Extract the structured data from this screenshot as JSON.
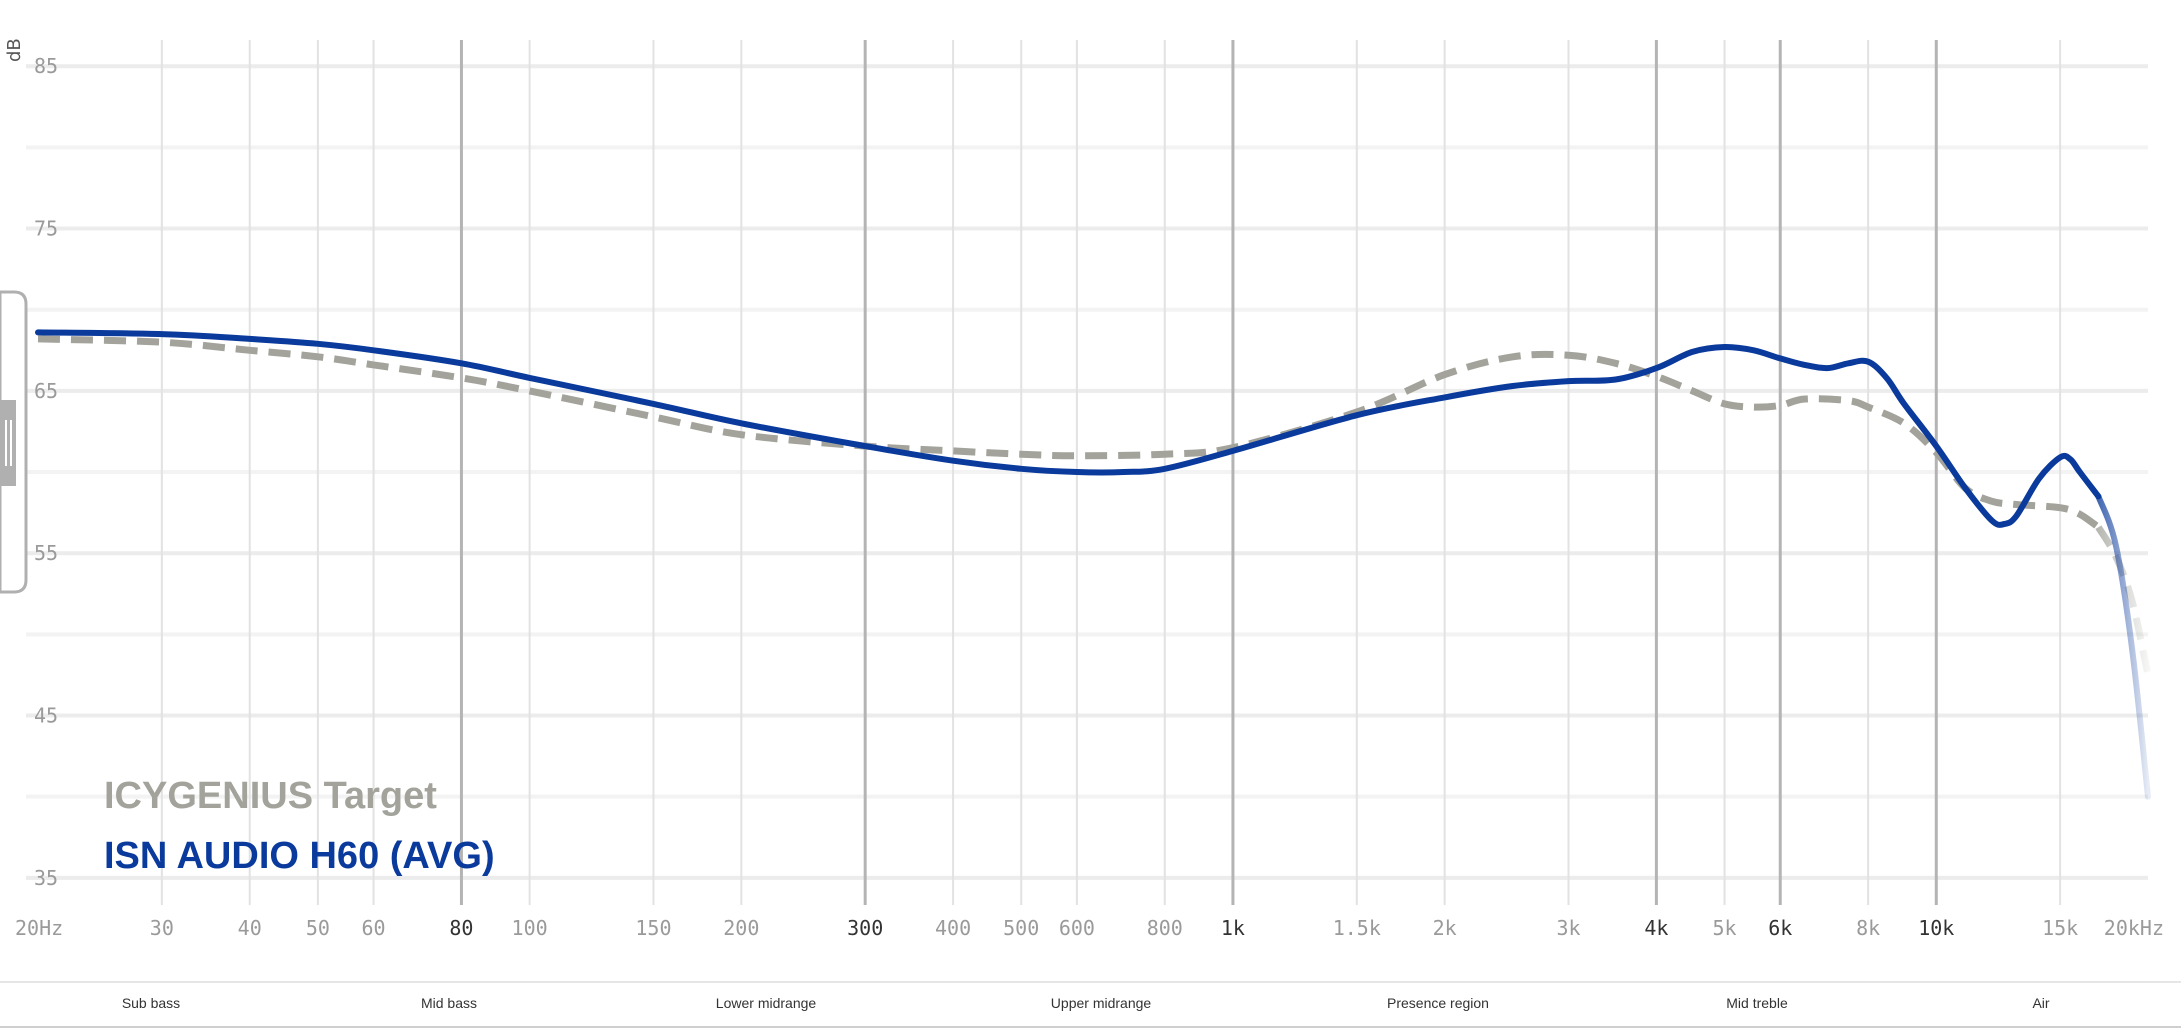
{
  "chart_data": {
    "type": "line",
    "x_scale": "log",
    "y_unit": "dB",
    "xlim": [
      20,
      20000
    ],
    "ylim": [
      30,
      86
    ],
    "y_ticks": [
      85,
      75,
      65,
      55,
      45,
      35
    ],
    "x_ticks": [
      {
        "value": 20,
        "label": "20Hz",
        "major": false
      },
      {
        "value": 30,
        "label": "30",
        "major": false
      },
      {
        "value": 40,
        "label": "40",
        "major": false
      },
      {
        "value": 50,
        "label": "50",
        "major": false
      },
      {
        "value": 60,
        "label": "60",
        "major": false
      },
      {
        "value": 80,
        "label": "80",
        "major": true
      },
      {
        "value": 100,
        "label": "100",
        "major": false
      },
      {
        "value": 150,
        "label": "150",
        "major": false
      },
      {
        "value": 200,
        "label": "200",
        "major": false
      },
      {
        "value": 300,
        "label": "300",
        "major": true
      },
      {
        "value": 400,
        "label": "400",
        "major": false
      },
      {
        "value": 500,
        "label": "500",
        "major": false
      },
      {
        "value": 600,
        "label": "600",
        "major": false
      },
      {
        "value": 800,
        "label": "800",
        "major": false
      },
      {
        "value": 1000,
        "label": "1k",
        "major": true
      },
      {
        "value": 1500,
        "label": "1.5k",
        "major": false
      },
      {
        "value": 2000,
        "label": "2k",
        "major": false
      },
      {
        "value": 3000,
        "label": "3k",
        "major": false
      },
      {
        "value": 4000,
        "label": "4k",
        "major": true
      },
      {
        "value": 5000,
        "label": "5k",
        "major": false
      },
      {
        "value": 6000,
        "label": "6k",
        "major": true
      },
      {
        "value": 8000,
        "label": "8k",
        "major": false
      },
      {
        "value": 10000,
        "label": "10k",
        "major": true
      },
      {
        "value": 15000,
        "label": "15k",
        "major": false
      },
      {
        "value": 20000,
        "label": "20kHz",
        "major": false
      }
    ],
    "series": [
      {
        "name": "ICYGENIUS Target",
        "color": "#a3a39c",
        "style": "dashed",
        "points": [
          [
            20,
            68.2
          ],
          [
            30,
            68.0
          ],
          [
            40,
            67.5
          ],
          [
            50,
            67.1
          ],
          [
            60,
            66.6
          ],
          [
            80,
            65.8
          ],
          [
            100,
            65.0
          ],
          [
            150,
            63.4
          ],
          [
            200,
            62.3
          ],
          [
            300,
            61.6
          ],
          [
            400,
            61.3
          ],
          [
            500,
            61.1
          ],
          [
            600,
            61.0
          ],
          [
            800,
            61.1
          ],
          [
            1000,
            61.5
          ],
          [
            1500,
            63.7
          ],
          [
            2000,
            66.0
          ],
          [
            2500,
            67.1
          ],
          [
            3000,
            67.2
          ],
          [
            3500,
            66.7
          ],
          [
            4000,
            65.9
          ],
          [
            4500,
            65.0
          ],
          [
            5000,
            64.2
          ],
          [
            5500,
            64.0
          ],
          [
            6000,
            64.1
          ],
          [
            6500,
            64.5
          ],
          [
            7500,
            64.4
          ],
          [
            8000,
            64.0
          ],
          [
            9000,
            63.0
          ],
          [
            10000,
            61.2
          ],
          [
            11000,
            59.0
          ],
          [
            12000,
            58.2
          ],
          [
            13000,
            58.0
          ],
          [
            15000,
            57.8
          ],
          [
            16000,
            57.4
          ],
          [
            17000,
            56.6
          ],
          [
            18000,
            54.8
          ],
          [
            19000,
            52.0
          ],
          [
            20000,
            47.5
          ]
        ]
      },
      {
        "name": "ISN AUDIO H60 (AVG)",
        "color": "#0a3a9c",
        "style": "solid",
        "points": [
          [
            20,
            68.6
          ],
          [
            30,
            68.5
          ],
          [
            40,
            68.2
          ],
          [
            50,
            67.9
          ],
          [
            60,
            67.5
          ],
          [
            80,
            66.7
          ],
          [
            100,
            65.8
          ],
          [
            150,
            64.2
          ],
          [
            200,
            63.0
          ],
          [
            300,
            61.6
          ],
          [
            400,
            60.7
          ],
          [
            500,
            60.2
          ],
          [
            600,
            60.0
          ],
          [
            700,
            60.0
          ],
          [
            800,
            60.2
          ],
          [
            1000,
            61.3
          ],
          [
            1500,
            63.5
          ],
          [
            2000,
            64.6
          ],
          [
            2500,
            65.3
          ],
          [
            3000,
            65.6
          ],
          [
            3500,
            65.7
          ],
          [
            4000,
            66.4
          ],
          [
            4500,
            67.4
          ],
          [
            5000,
            67.7
          ],
          [
            5500,
            67.5
          ],
          [
            6000,
            67.0
          ],
          [
            6500,
            66.6
          ],
          [
            7000,
            66.4
          ],
          [
            7500,
            66.7
          ],
          [
            8000,
            66.8
          ],
          [
            8500,
            65.8
          ],
          [
            9000,
            64.2
          ],
          [
            10000,
            61.6
          ],
          [
            11000,
            59.0
          ],
          [
            12000,
            57.0
          ],
          [
            12500,
            56.8
          ],
          [
            13000,
            57.3
          ],
          [
            14000,
            59.6
          ],
          [
            15000,
            60.9
          ],
          [
            15500,
            60.8
          ],
          [
            16000,
            60.0
          ],
          [
            17000,
            58.5
          ],
          [
            18000,
            55.5
          ],
          [
            19000,
            49.0
          ],
          [
            20000,
            40.0
          ]
        ]
      }
    ],
    "legend": {
      "placement": "bottom-left",
      "entries": [
        "ICYGENIUS Target",
        "ISN AUDIO H60 (AVG)"
      ]
    },
    "regions": [
      {
        "label": "Sub bass",
        "center_hz": 30
      },
      {
        "label": "Mid bass",
        "center_hz": 80
      },
      {
        "label": "Lower midrange",
        "center_hz": 250
      },
      {
        "label": "Upper midrange",
        "center_hz": 600
      },
      {
        "label": "Presence region",
        "center_hz": 2000
      },
      {
        "label": "Mid treble",
        "center_hz": 6000
      },
      {
        "label": "Air",
        "center_hz": 15000
      }
    ],
    "grid": true
  }
}
